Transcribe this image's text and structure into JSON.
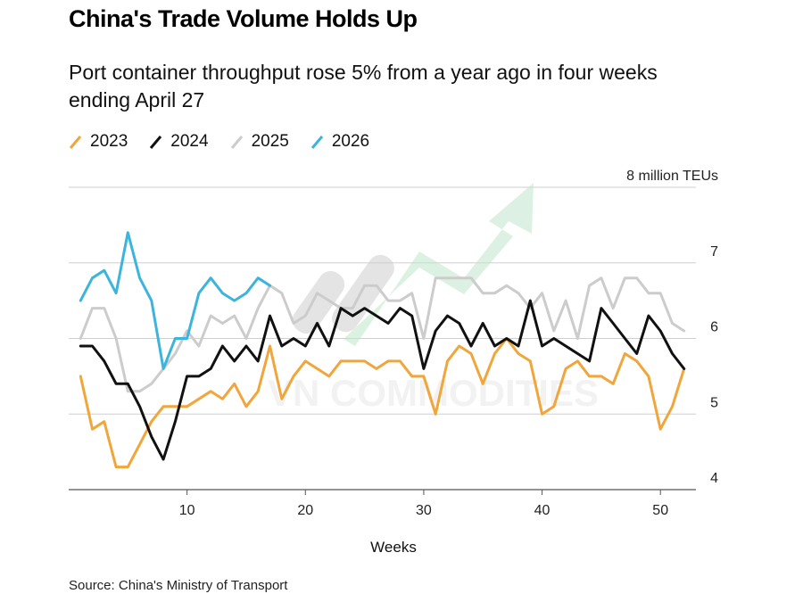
{
  "header": {
    "title": "China's Trade Volume Holds Up",
    "subtitle": "Port container throughput rose 5% from a year ago in four weeks ending April 27"
  },
  "source": "Source: China's Ministry of Transport",
  "watermark": "VN COMMODITIES",
  "chart_data": {
    "type": "line",
    "xlabel": "Weeks",
    "ylabel": "8 million TEUs",
    "xlim": [
      0,
      53
    ],
    "ylim": [
      4,
      8
    ],
    "xticks": [
      10,
      20,
      30,
      40,
      50
    ],
    "yticks": [
      4,
      5,
      6,
      7,
      8
    ],
    "ytick_labels": [
      "4",
      "5",
      "6",
      "7",
      "8 million TEUs"
    ],
    "grid": true,
    "legend_position": "top-left",
    "series": [
      {
        "name": "2023",
        "color": "#f0a63a",
        "x": [
          1,
          2,
          3,
          4,
          5,
          6,
          7,
          8,
          9,
          10,
          11,
          12,
          13,
          14,
          15,
          16,
          17,
          18,
          19,
          20,
          21,
          22,
          23,
          24,
          25,
          26,
          27,
          28,
          29,
          30,
          31,
          32,
          33,
          34,
          35,
          36,
          37,
          38,
          39,
          40,
          41,
          42,
          43,
          44,
          45,
          46,
          47,
          48,
          49,
          50,
          51,
          52
        ],
        "values": [
          5.5,
          4.8,
          4.9,
          4.3,
          4.3,
          4.6,
          4.9,
          5.1,
          5.1,
          5.1,
          5.2,
          5.3,
          5.2,
          5.4,
          5.1,
          5.3,
          5.9,
          5.2,
          5.5,
          5.7,
          5.6,
          5.5,
          5.7,
          5.7,
          5.7,
          5.6,
          5.7,
          5.7,
          5.5,
          5.5,
          5.0,
          5.7,
          5.9,
          5.8,
          5.4,
          5.8,
          6.0,
          5.8,
          5.7,
          5.0,
          5.1,
          5.6,
          5.7,
          5.5,
          5.5,
          5.4,
          5.8,
          5.7,
          5.5,
          4.8,
          5.1,
          5.6
        ]
      },
      {
        "name": "2024",
        "color": "#111111",
        "x": [
          1,
          2,
          3,
          4,
          5,
          6,
          7,
          8,
          9,
          10,
          11,
          12,
          13,
          14,
          15,
          16,
          17,
          18,
          19,
          20,
          21,
          22,
          23,
          24,
          25,
          26,
          27,
          28,
          29,
          30,
          31,
          32,
          33,
          34,
          35,
          36,
          37,
          38,
          39,
          40,
          41,
          42,
          43,
          44,
          45,
          46,
          47,
          48,
          49,
          50,
          51,
          52
        ],
        "values": [
          5.9,
          5.9,
          5.7,
          5.4,
          5.4,
          5.1,
          4.7,
          4.4,
          4.9,
          5.5,
          5.5,
          5.6,
          5.9,
          5.7,
          5.9,
          5.7,
          6.3,
          5.9,
          6.0,
          5.9,
          6.2,
          5.9,
          6.4,
          6.3,
          6.4,
          6.3,
          6.2,
          6.4,
          6.3,
          5.6,
          6.1,
          6.3,
          6.2,
          5.9,
          6.2,
          5.9,
          6.0,
          5.9,
          6.5,
          5.9,
          6.0,
          5.9,
          5.8,
          5.7,
          6.4,
          6.2,
          6.0,
          5.8,
          6.3,
          6.1,
          5.8,
          5.6
        ]
      },
      {
        "name": "2025",
        "color": "#cccccc",
        "x": [
          1,
          2,
          3,
          4,
          5,
          6,
          7,
          8,
          9,
          10,
          11,
          12,
          13,
          14,
          15,
          16,
          17,
          18,
          19,
          20,
          21,
          22,
          23,
          24,
          25,
          26,
          27,
          28,
          29,
          30,
          31,
          32,
          33,
          34,
          35,
          36,
          37,
          38,
          39,
          40,
          41,
          42,
          43,
          44,
          45,
          46,
          47,
          48,
          49,
          50,
          51,
          52
        ],
        "values": [
          6.0,
          6.4,
          6.4,
          6.0,
          5.3,
          5.3,
          5.4,
          5.6,
          5.8,
          6.1,
          5.9,
          6.3,
          6.2,
          6.3,
          6.0,
          6.4,
          6.7,
          6.6,
          6.2,
          6.3,
          6.6,
          6.5,
          6.4,
          6.4,
          6.7,
          6.7,
          6.5,
          6.5,
          6.6,
          6.0,
          6.8,
          6.8,
          6.8,
          6.8,
          6.6,
          6.6,
          6.7,
          6.6,
          6.4,
          6.6,
          6.1,
          6.5,
          6.0,
          6.7,
          6.8,
          6.4,
          6.8,
          6.8,
          6.6,
          6.6,
          6.2,
          6.1
        ]
      },
      {
        "name": "2026",
        "color": "#3cb4dc",
        "x": [
          1,
          2,
          3,
          4,
          5,
          6,
          7,
          8,
          9,
          10,
          11,
          12,
          13,
          14,
          15,
          16,
          17
        ],
        "values": [
          6.5,
          6.8,
          6.9,
          6.6,
          7.4,
          6.8,
          6.5,
          5.6,
          6.0,
          6.0,
          6.6,
          6.8,
          6.6,
          6.5,
          6.6,
          6.8,
          6.7
        ]
      }
    ]
  }
}
